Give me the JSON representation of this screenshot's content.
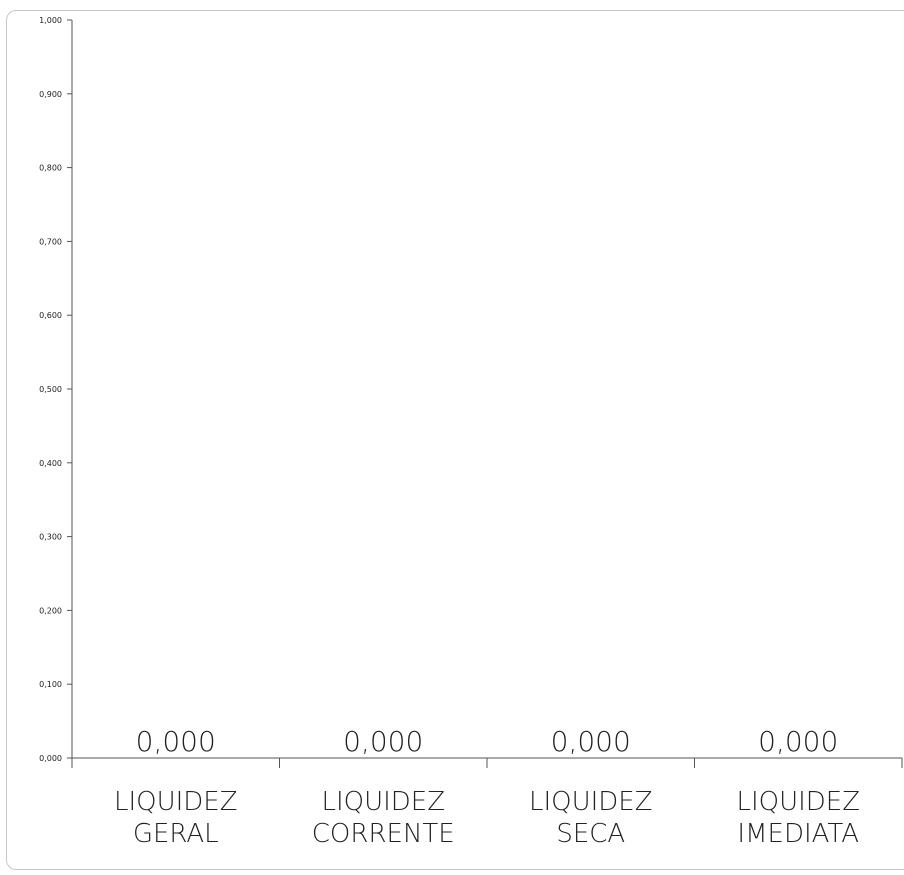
{
  "chart_data": {
    "type": "bar",
    "categories": [
      "LIQUIDEZ GERAL",
      "LIQUIDEZ CORRENTE",
      "LIQUIDEZ SECA",
      "LIQUIDEZ IMEDIATA"
    ],
    "category_lines": [
      [
        "LIQUIDEZ",
        "GERAL"
      ],
      [
        "LIQUIDEZ",
        "CORRENTE"
      ],
      [
        "LIQUIDEZ",
        "SECA"
      ],
      [
        "LIQUIDEZ",
        "IMEDIATA"
      ]
    ],
    "values": [
      0.0,
      0.0,
      0.0,
      0.0
    ],
    "data_labels": [
      "0,000",
      "0,000",
      "0,000",
      "0,000"
    ],
    "ylim": [
      0,
      1
    ],
    "yticks": [
      "0,000",
      "0,100",
      "0,200",
      "0,300",
      "0,400",
      "0,500",
      "0,600",
      "0,700",
      "0,800",
      "0,900",
      "1,000"
    ],
    "title": "",
    "xlabel": "",
    "ylabel": "",
    "grid": false,
    "legend": "none",
    "bar_color": "#4f81bd"
  }
}
